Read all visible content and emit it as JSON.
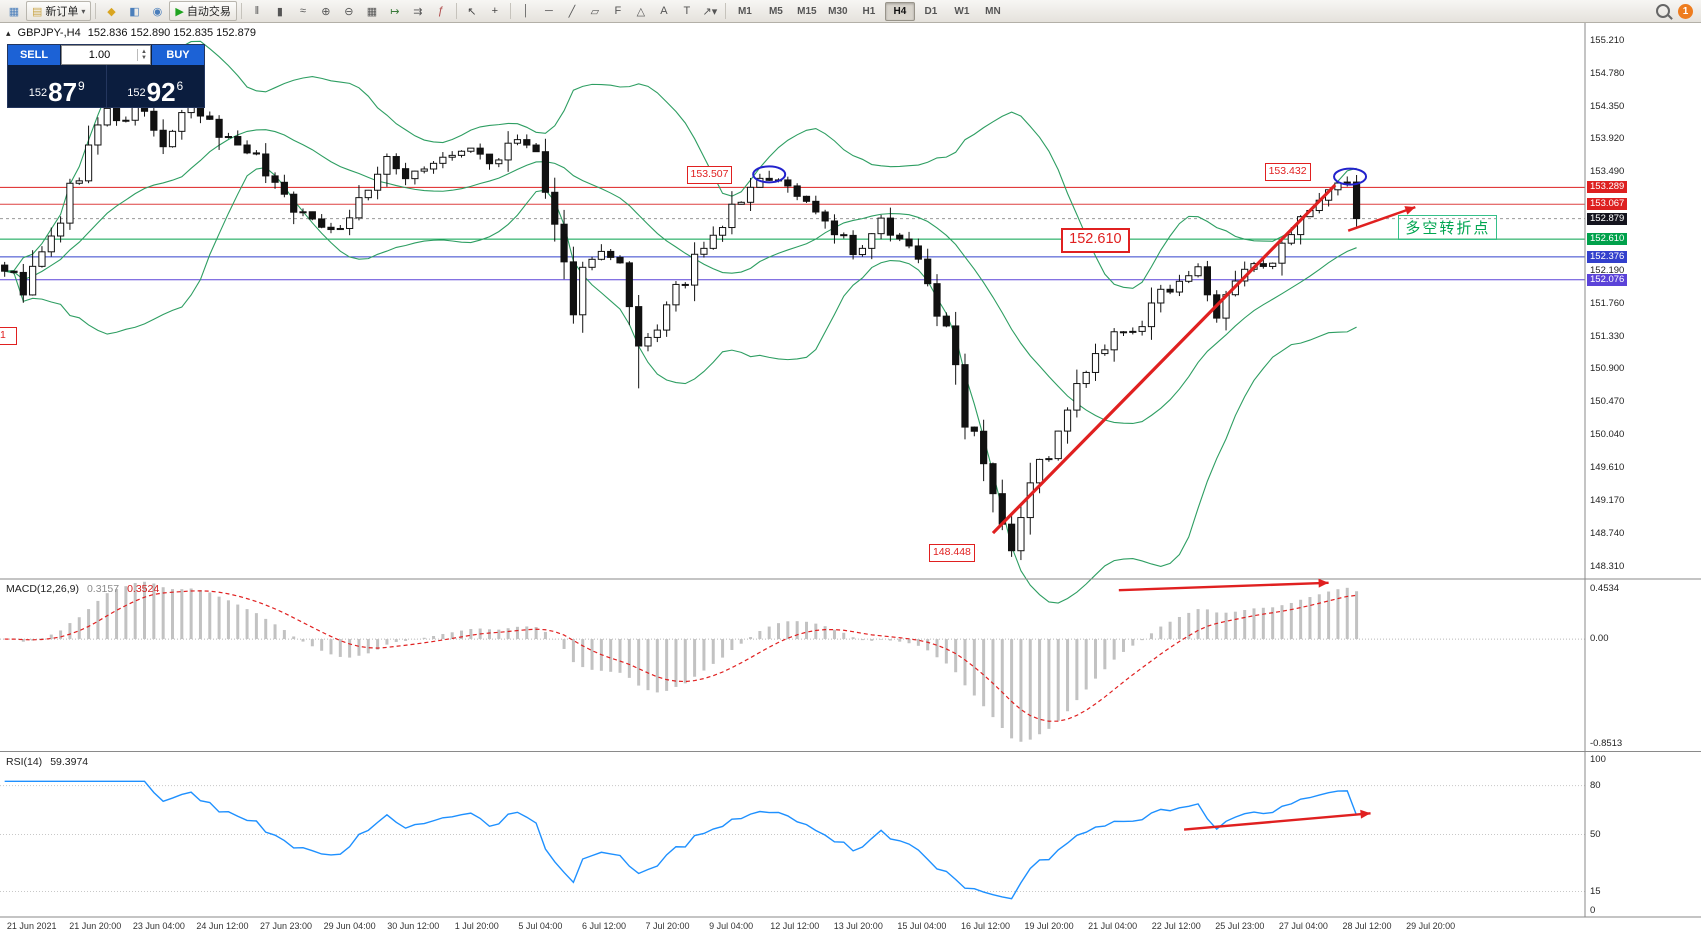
{
  "toolbar": {
    "groups": [
      {
        "items": [
          {
            "name": "chart-window-icon",
            "glyph": "▦",
            "color": "#4a7ebb"
          },
          {
            "name": "new-order-button",
            "type": "text-button",
            "glyph": "▤",
            "color": "#caa64a",
            "label": "新订单",
            "caret": true
          }
        ]
      },
      {
        "items": [
          {
            "name": "market-watch-icon",
            "glyph": "◆",
            "color": "#d9a520"
          },
          {
            "name": "data-window-icon",
            "glyph": "◧",
            "color": "#4a7ebb"
          },
          {
            "name": "navigator-icon",
            "glyph": "◉",
            "color": "#4a7ebb"
          },
          {
            "name": "auto-trading-button",
            "type": "text-button",
            "glyph": "▶",
            "color": "#1fa31f",
            "label": "自动交易",
            "caret": false
          }
        ]
      },
      {
        "items": [
          {
            "name": "bar-chart-icon",
            "glyph": "‖",
            "color": "#555"
          },
          {
            "name": "candlestick-chart-icon",
            "glyph": "▮",
            "color": "#555"
          },
          {
            "name": "line-chart-icon",
            "glyph": "≈",
            "color": "#555"
          },
          {
            "name": "zoom-in-icon",
            "glyph": "⊕",
            "color": "#555"
          },
          {
            "name": "zoom-out-icon",
            "glyph": "⊖",
            "color": "#555"
          },
          {
            "name": "tile-windows-icon",
            "glyph": "▦",
            "color": "#555"
          },
          {
            "name": "auto-scroll-icon",
            "glyph": "↦",
            "color": "#3a7a3a"
          },
          {
            "name": "chart-shift-icon",
            "glyph": "⇉",
            "color": "#555"
          },
          {
            "name": "indicators-icon",
            "glyph": "ƒ",
            "color": "#b04a4a"
          }
        ]
      },
      {
        "items": [
          {
            "name": "cursor-icon",
            "glyph": "↖",
            "color": "#444"
          },
          {
            "name": "crosshair-icon",
            "glyph": "+",
            "color": "#444"
          }
        ]
      },
      {
        "items": [
          {
            "name": "vertical-line-icon",
            "glyph": "│",
            "color": "#555"
          },
          {
            "name": "horizontal-line-icon",
            "glyph": "─",
            "color": "#555"
          },
          {
            "name": "trendline-icon",
            "glyph": "╱",
            "color": "#555"
          },
          {
            "name": "equidistant-channel-icon",
            "glyph": "▱",
            "color": "#555"
          },
          {
            "name": "fibonacci-icon",
            "glyph": "F",
            "color": "#555"
          },
          {
            "name": "shapes-icon",
            "glyph": "△",
            "color": "#555"
          },
          {
            "name": "text-icon",
            "glyph": "A",
            "color": "#555"
          },
          {
            "name": "text-label-icon",
            "glyph": "T",
            "color": "#555"
          },
          {
            "name": "arrows-icon",
            "glyph": "↗",
            "color": "#555",
            "caret": true
          }
        ]
      }
    ],
    "timeframes": [
      "M1",
      "M5",
      "M15",
      "M30",
      "H1",
      "H4",
      "D1",
      "W1",
      "MN"
    ],
    "active_timeframe": "H4",
    "notification_badge": "1"
  },
  "chart_title": {
    "collapse_glyph": "▴",
    "symbol": "GBPJPY-,H4",
    "ohlc": "152.836 152.890 152.835 152.879"
  },
  "trade_panel": {
    "sell_label": "SELL",
    "buy_label": "BUY",
    "volume": "1.00",
    "prefix": "152",
    "sell_big": "87",
    "sell_sup": "9",
    "buy_big": "92",
    "buy_sup": "6"
  },
  "chart_data": {
    "type": "candlestick",
    "symbol": "GBPJPY-",
    "timeframe": "H4",
    "num_candles": 146,
    "total_slots": 170,
    "price_keyframes": [
      [
        0,
        152.25
      ],
      [
        2,
        151.95
      ],
      [
        5,
        152.6
      ],
      [
        7,
        153.2
      ],
      [
        9,
        153.8
      ],
      [
        11,
        154.3
      ],
      [
        13,
        154.1
      ],
      [
        14,
        154.45
      ],
      [
        16,
        154.0
      ],
      [
        17,
        153.85
      ],
      [
        20,
        154.35
      ],
      [
        23,
        154.0
      ],
      [
        26,
        153.8
      ],
      [
        28,
        153.5
      ],
      [
        30,
        153.2
      ],
      [
        32,
        152.9
      ],
      [
        34,
        152.8
      ],
      [
        36,
        152.75
      ],
      [
        39,
        153.3
      ],
      [
        41,
        153.6
      ],
      [
        43,
        153.45
      ],
      [
        46,
        153.6
      ],
      [
        48,
        153.7
      ],
      [
        50,
        153.8
      ],
      [
        52,
        153.6
      ],
      [
        55,
        153.9
      ],
      [
        57,
        153.75
      ],
      [
        59,
        152.5
      ],
      [
        61,
        151.8
      ],
      [
        63,
        152.5
      ],
      [
        65,
        152.35
      ],
      [
        66,
        152.2
      ],
      [
        68,
        150.95
      ],
      [
        70,
        151.5
      ],
      [
        72,
        151.9
      ],
      [
        74,
        152.3
      ],
      [
        76,
        152.6
      ],
      [
        78,
        153.0
      ],
      [
        80,
        153.25
      ],
      [
        82,
        153.45
      ],
      [
        84,
        153.3
      ],
      [
        85,
        153.2
      ],
      [
        87,
        153.0
      ],
      [
        88,
        152.85
      ],
      [
        90,
        152.6
      ],
      [
        91,
        152.35
      ],
      [
        93,
        152.6
      ],
      [
        94,
        152.8
      ],
      [
        96,
        152.65
      ],
      [
        97,
        152.5
      ],
      [
        99,
        152.1
      ],
      [
        100,
        151.7
      ],
      [
        102,
        150.9
      ],
      [
        103,
        150.4
      ],
      [
        105,
        149.8
      ],
      [
        106,
        149.4
      ],
      [
        108,
        148.65
      ],
      [
        109,
        149.1
      ],
      [
        110,
        149.5
      ],
      [
        112,
        149.8
      ],
      [
        113,
        150.0
      ],
      [
        115,
        150.6
      ],
      [
        116,
        150.9
      ],
      [
        118,
        151.15
      ],
      [
        119,
        151.3
      ],
      [
        121,
        151.4
      ],
      [
        122,
        151.5
      ],
      [
        124,
        151.85
      ],
      [
        125,
        152.0
      ],
      [
        127,
        152.15
      ],
      [
        128,
        152.2
      ],
      [
        129,
        151.9
      ],
      [
        130,
        151.6
      ],
      [
        132,
        152.0
      ],
      [
        133,
        152.2
      ],
      [
        135,
        152.3
      ],
      [
        136,
        152.35
      ],
      [
        138,
        152.6
      ],
      [
        139,
        152.8
      ],
      [
        141,
        153.05
      ],
      [
        142,
        153.2
      ],
      [
        144,
        153.38
      ],
      [
        145,
        152.879
      ]
    ],
    "forced_extremes": [
      {
        "slot": 14,
        "high": 154.55
      },
      {
        "slot": 68,
        "low": 150.65
      },
      {
        "slot": 82,
        "high": 153.507
      },
      {
        "slot": 108,
        "low": 148.448
      },
      {
        "slot": 144,
        "high": 153.432
      }
    ],
    "bollinger": {
      "period": 20,
      "deviation": 2,
      "color": "#2e9e62"
    },
    "y_axis": {
      "normal": [
        "155.210",
        "154.780",
        "154.350",
        "153.920",
        "153.490",
        "152.190",
        "151.760",
        "151.330",
        "150.900",
        "150.470",
        "150.040",
        "149.610",
        "149.170",
        "148.740",
        "148.310"
      ],
      "highlights": [
        {
          "text": "153.289",
          "value": 153.289,
          "bg": "#dd2020"
        },
        {
          "text": "153.067",
          "value": 153.067,
          "bg": "#dd2020"
        },
        {
          "text": "152.879",
          "value": 152.879,
          "bg": "#14141e"
        },
        {
          "text": "152.610",
          "value": 152.61,
          "bg": "#00a14b"
        },
        {
          "text": "152.376",
          "value": 152.376,
          "bg": "#3340cc"
        },
        {
          "text": "152.076",
          "value": 152.076,
          "bg": "#5b43d8"
        }
      ]
    },
    "h_lines": [
      {
        "value": 153.289,
        "color": "#dd2020",
        "dash": ""
      },
      {
        "value": 153.067,
        "color": "#dd4040",
        "dash": ""
      },
      {
        "value": 152.61,
        "color": "#00a14b",
        "dash": ""
      },
      {
        "value": 152.376,
        "color": "#3340cc",
        "dash": ""
      },
      {
        "value": 152.076,
        "color": "#5b43d8",
        "dash": ""
      },
      {
        "value": 152.879,
        "color": "#9a9a9a",
        "dash": "3,3"
      }
    ],
    "macd": {
      "label": "MACD(12,26,9)",
      "value1": "0.3157",
      "value2": "0.3524",
      "scale": {
        "max": "0.4534",
        "zero": "0.00",
        "min": "-0.8513"
      }
    },
    "rsi": {
      "label": "RSI(14)",
      "value": "59.3974",
      "scale": [
        "100",
        "80",
        "50",
        "15",
        "0"
      ],
      "levels": [
        80,
        50,
        15
      ]
    },
    "time_labels": [
      "21 Jun 2021",
      "21 Jun 20:00",
      "23 Jun 04:00",
      "24 Jun 12:00",
      "27 Jun 23:00",
      "29 Jun 04:00",
      "30 Jun 12:00",
      "1 Jul 20:00",
      "5 Jul 04:00",
      "6 Jul 12:00",
      "7 Jul 20:00",
      "9 Jul 04:00",
      "12 Jul 12:00",
      "13 Jul 20:00",
      "15 Jul 04:00",
      "16 Jul 12:00",
      "19 Jul 20:00",
      "21 Jul 04:00",
      "22 Jul 12:00",
      "25 Jul 23:00",
      "27 Jul 04:00",
      "28 Jul 12:00",
      "29 Jul 20:00"
    ],
    "annotations": {
      "price_labels": [
        {
          "text": "153.507",
          "slot": 82,
          "price": 153.46,
          "side": "left",
          "size": "normal"
        },
        {
          "text": "153.432",
          "slot": 144,
          "price": 153.5,
          "side": "left",
          "size": "normal"
        },
        {
          "text": "152.610",
          "slot": 118,
          "price": 152.61,
          "side": "center",
          "size": "large"
        },
        {
          "text": "148.448",
          "slot": 108,
          "price": 148.5,
          "side": "left",
          "size": "normal"
        },
        {
          "text": "1",
          "slot": 0,
          "price": 151.35,
          "side": "edge",
          "size": "normal"
        }
      ],
      "ellipses": [
        {
          "slot": 82,
          "price": 153.46
        },
        {
          "slot": 144.3,
          "price": 153.43
        }
      ],
      "trend_lines": [
        {
          "pane": "main",
          "from": [
            106.5,
            148.75
          ],
          "to": [
            143.2,
            153.32
          ],
          "arrow": false,
          "width": 3.2
        },
        {
          "pane": "main",
          "from": [
            144.6,
            152.72
          ],
          "to": [
            151.8,
            153.03
          ],
          "arrow": true,
          "width": 2.4
        },
        {
          "pane": "macd",
          "from": [
            120,
            0.375
          ],
          "to": [
            142.5,
            0.432
          ],
          "arrow": true,
          "width": 2.4
        },
        {
          "pane": "rsi",
          "from": [
            127,
            53
          ],
          "to": [
            147,
            63
          ],
          "arrow": true,
          "width": 2.4
        }
      ],
      "turning_point": {
        "text": "多空转折点",
        "slot": 150.3,
        "price": 152.78,
        "color": "#00a550"
      }
    }
  }
}
